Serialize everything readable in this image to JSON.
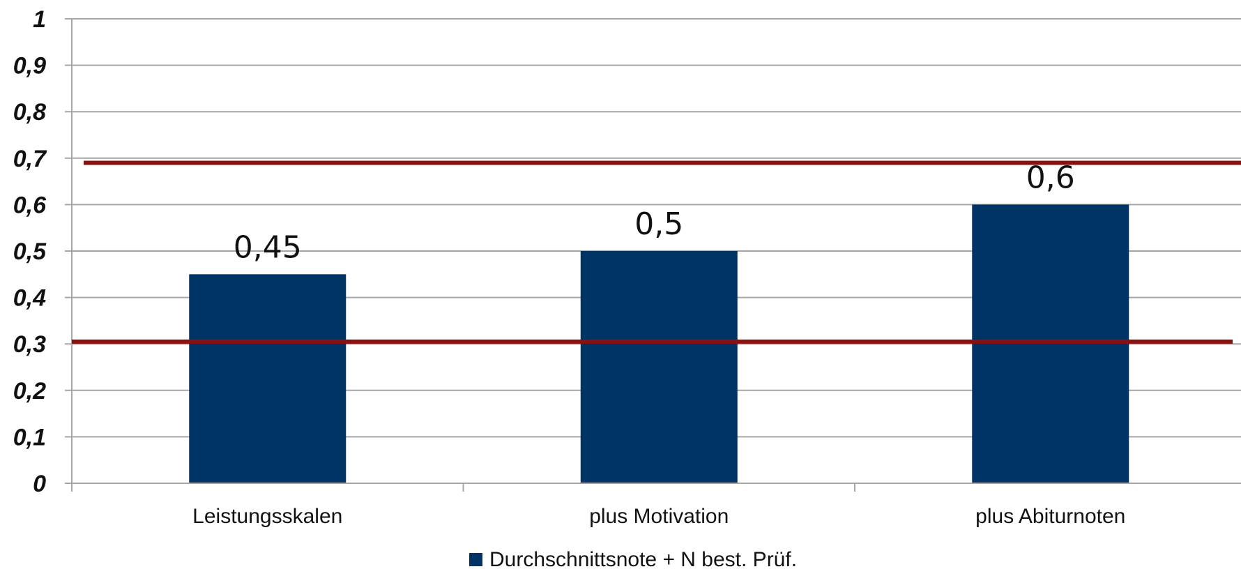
{
  "chart_data": {
    "type": "bar",
    "categories": [
      "Leistungsskalen",
      "plus Motivation",
      "plus Abiturnoten"
    ],
    "series": [
      {
        "name": "Durchschnittsnote + N best. Prüf.",
        "values": [
          0.45,
          0.5,
          0.6
        ],
        "labels": [
          "0,45",
          "0,5",
          "0,6"
        ],
        "color": "#003366"
      }
    ],
    "ylim": [
      0,
      1
    ],
    "yticks": [
      0,
      0.1,
      0.2,
      0.3,
      0.4,
      0.5,
      0.6,
      0.7,
      0.8,
      0.9,
      1
    ],
    "ytick_labels": [
      "0",
      "0,1",
      "0,2",
      "0,3",
      "0,4",
      "0,5",
      "0,6",
      "0,7",
      "0,8",
      "0,9",
      "1"
    ],
    "reference_lines": [
      {
        "value": 0.69,
        "color": "#8b1010"
      },
      {
        "value": 0.305,
        "color": "#8b1010"
      }
    ],
    "grid": true,
    "gridline_color": "#a6a6a6",
    "legend_position": "bottom-center"
  }
}
